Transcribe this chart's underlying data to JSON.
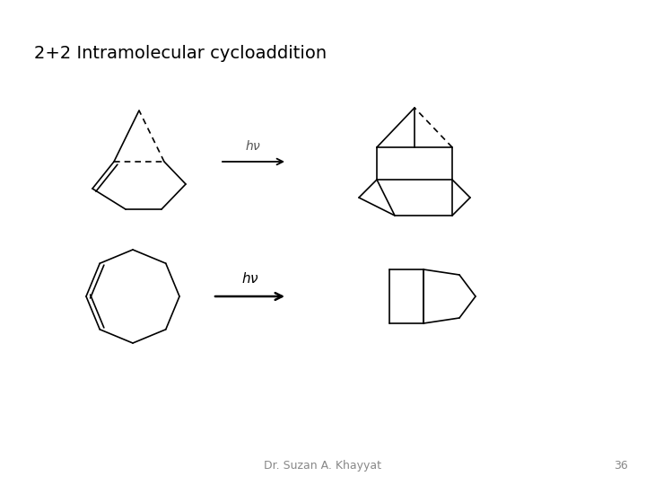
{
  "title": "2+2 Intramolecular cycloaddition",
  "title_fontsize": 14,
  "footer_text": "Dr. Suzan A. Khayyat",
  "footer_number": "36",
  "background_color": "#ffffff",
  "line_color": "#000000",
  "lw": 1.2
}
